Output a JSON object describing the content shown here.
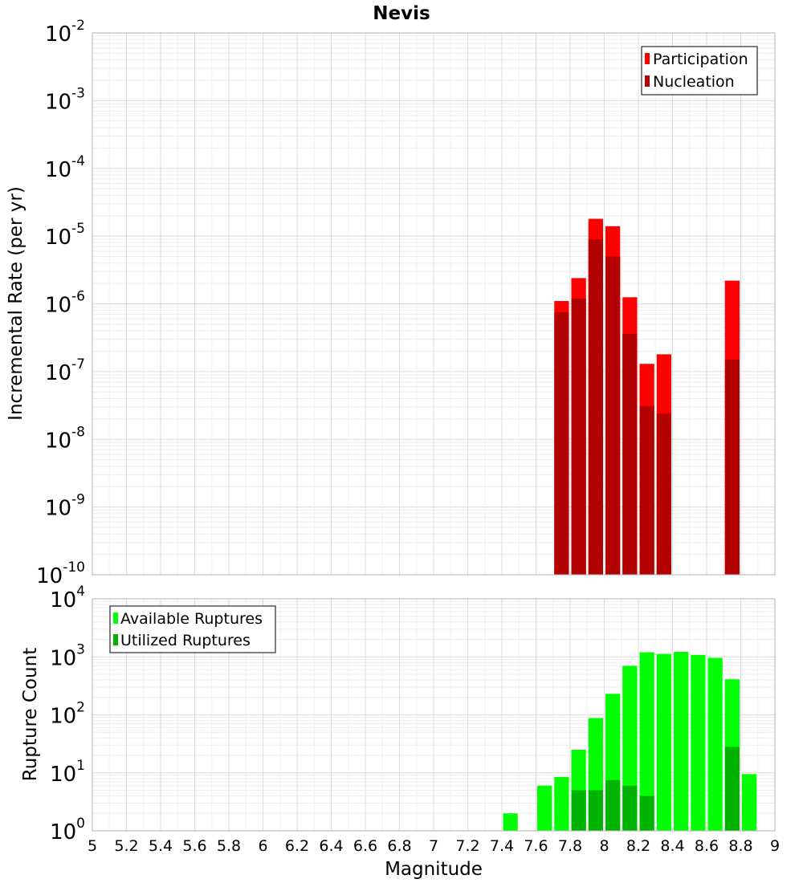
{
  "chart_data": [
    {
      "type": "bar",
      "title": "Nevis",
      "ylabel": "Incremental Rate (per yr)",
      "yscale": "log",
      "ylim_exp": [
        -10,
        -2
      ],
      "xlim": [
        5,
        9
      ],
      "bin_width": 0.1,
      "legend_position": "top-right",
      "grid": true,
      "series": [
        {
          "name": "Participation",
          "color": "#ff0000",
          "x": [
            7.75,
            7.85,
            7.95,
            8.05,
            8.15,
            8.25,
            8.35,
            8.75
          ],
          "values": [
            1.1e-06,
            2.4e-06,
            1.8e-05,
            1.4e-05,
            1.25e-06,
            1.3e-07,
            1.8e-07,
            2.2e-06
          ]
        },
        {
          "name": "Nucleation",
          "color": "#b30000",
          "x": [
            7.75,
            7.85,
            7.95,
            8.05,
            8.15,
            8.25,
            8.35,
            8.75
          ],
          "values": [
            7.5e-07,
            1.2e-06,
            9e-06,
            5e-06,
            3.6e-07,
            3.1e-08,
            2.4e-08,
            1.5e-07
          ]
        }
      ]
    },
    {
      "type": "bar",
      "xlabel": "Magnitude",
      "ylabel": "Rupture Count",
      "yscale": "log",
      "ylim_exp": [
        0,
        4
      ],
      "xlim": [
        5,
        9
      ],
      "xticks": [
        "5",
        "5.2",
        "5.4",
        "5.6",
        "5.8",
        "6",
        "6.2",
        "6.4",
        "6.6",
        "6.8",
        "7",
        "7.2",
        "7.4",
        "7.6",
        "7.8",
        "8",
        "8.2",
        "8.4",
        "8.6",
        "8.8",
        "9"
      ],
      "bin_width": 0.1,
      "legend_position": "top-left",
      "grid": true,
      "series": [
        {
          "name": "Available Ruptures",
          "color": "#00ff00",
          "x": [
            7.45,
            7.65,
            7.75,
            7.85,
            7.95,
            8.05,
            8.15,
            8.25,
            8.35,
            8.45,
            8.55,
            8.65,
            8.75,
            8.85
          ],
          "values": [
            2,
            6,
            8.5,
            25,
            88,
            230,
            700,
            1200,
            1120,
            1220,
            1080,
            960,
            410,
            9.5
          ]
        },
        {
          "name": "Utilized Ruptures",
          "color": "#00b300",
          "x": [
            7.75,
            7.85,
            7.95,
            8.05,
            8.15,
            8.25,
            8.35,
            8.75
          ],
          "values": [
            1,
            5,
            5,
            7.5,
            6,
            4,
            1,
            28
          ]
        }
      ]
    }
  ]
}
